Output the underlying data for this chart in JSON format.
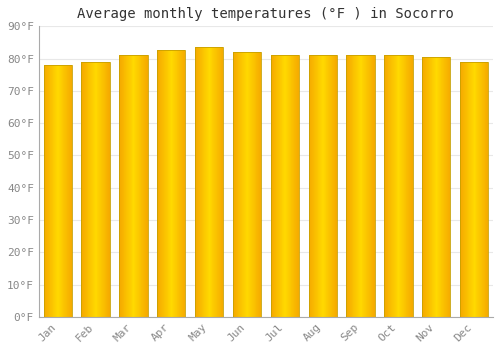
{
  "title": "Average monthly temperatures (°F ) in Socorro",
  "months": [
    "Jan",
    "Feb",
    "Mar",
    "Apr",
    "May",
    "Jun",
    "Jul",
    "Aug",
    "Sep",
    "Oct",
    "Nov",
    "Dec"
  ],
  "values": [
    78.0,
    79.0,
    81.0,
    82.5,
    83.5,
    82.0,
    81.0,
    81.0,
    81.0,
    81.0,
    80.5,
    79.0
  ],
  "ylim": [
    0,
    90
  ],
  "yticks": [
    0,
    10,
    20,
    30,
    40,
    50,
    60,
    70,
    80,
    90
  ],
  "ytick_labels": [
    "0°F",
    "10°F",
    "20°F",
    "30°F",
    "40°F",
    "50°F",
    "60°F",
    "70°F",
    "80°F",
    "90°F"
  ],
  "bar_color_center": "#FFD700",
  "bar_color_edge": "#F5A800",
  "bar_outline_color": "#C8A000",
  "background_color": "#FFFFFF",
  "grid_color": "#E8E8E8",
  "title_fontsize": 10,
  "tick_fontsize": 8,
  "tick_color": "#888888",
  "bar_width": 0.75
}
